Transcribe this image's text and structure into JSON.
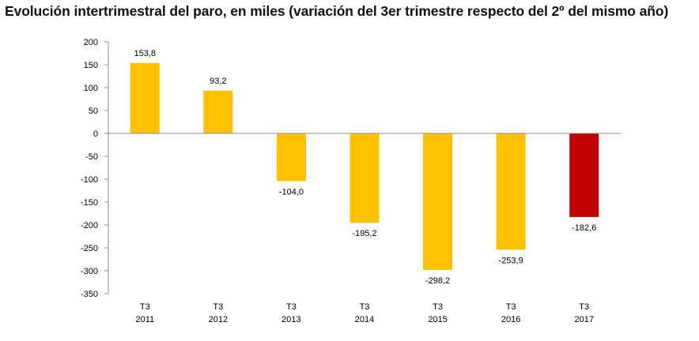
{
  "chart_data": {
    "type": "bar",
    "title": "Evolución intertrimestral del paro, en miles (variación del 3er trimestre respecto del 2º del mismo año)",
    "categories": [
      [
        "T3",
        "2011"
      ],
      [
        "T3",
        "2012"
      ],
      [
        "T3",
        "2013"
      ],
      [
        "T3",
        "2014"
      ],
      [
        "T3",
        "2015"
      ],
      [
        "T3",
        "2016"
      ],
      [
        "T3",
        "2017"
      ]
    ],
    "values": [
      153.8,
      93.2,
      -104.0,
      -195.2,
      -298.2,
      -253.9,
      -182.6
    ],
    "value_labels": [
      "153,8",
      "93,2",
      "-104,0",
      "-195,2",
      "-298,2",
      "-253,9",
      "-182,6"
    ],
    "colors": [
      "#FFC000",
      "#FFC000",
      "#FFC000",
      "#FFC000",
      "#FFC000",
      "#FFC000",
      "#C00000"
    ],
    "ylim": [
      -350,
      200
    ],
    "yticks": [
      200,
      150,
      100,
      50,
      0,
      -50,
      -100,
      -150,
      -200,
      -250,
      -300,
      -350
    ],
    "xlabel": "",
    "ylabel": "",
    "grid": false,
    "legend": "none"
  }
}
